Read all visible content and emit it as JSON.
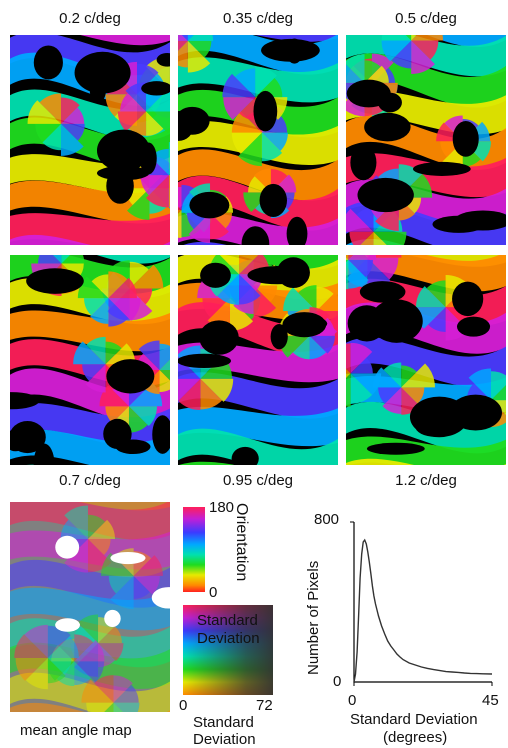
{
  "figure": {
    "top_labels": [
      "0.2 c/deg",
      "0.35 c/deg",
      "0.5 c/deg"
    ],
    "bottom_labels": [
      "0.7 c/deg",
      "0.95 c/deg",
      "1.2 c/deg"
    ],
    "mean_map_caption": "mean angle map",
    "orientation_legend": {
      "title": "Orientation",
      "max": "180",
      "min": "0"
    },
    "sd_legend": {
      "title_line1": "Standard",
      "title_line2": "Deviation",
      "min": "0",
      "max": "72"
    },
    "colors": {
      "black": "#000000",
      "white": "#ffffff"
    }
  },
  "chart_data": {
    "type": "line",
    "ylabel": "Number of Pixels",
    "xlabel_line1": "Standard Deviation",
    "xlabel_line2": "(degrees)",
    "xlim": [
      0,
      45
    ],
    "ylim": [
      0,
      800
    ],
    "xticks": [
      "0",
      "45"
    ],
    "yticks": [
      "0",
      "800"
    ],
    "series": [
      {
        "x": [
          0,
          0.5,
          1,
          1.5,
          2,
          2.5,
          3,
          3.5,
          4,
          4.5,
          5,
          5.5,
          6,
          6.5,
          7,
          7.5,
          8,
          9,
          10,
          11,
          12,
          13,
          14,
          15,
          16,
          18,
          20,
          22,
          24,
          26,
          28,
          30,
          32,
          34,
          36,
          38,
          40,
          42,
          45
        ],
        "values": [
          0,
          40,
          150,
          330,
          520,
          640,
          700,
          710,
          690,
          650,
          600,
          540,
          480,
          430,
          390,
          360,
          330,
          280,
          240,
          205,
          180,
          160,
          140,
          125,
          112,
          95,
          85,
          75,
          68,
          62,
          57,
          52,
          50,
          48,
          45,
          43,
          42,
          41,
          40
        ]
      }
    ]
  }
}
